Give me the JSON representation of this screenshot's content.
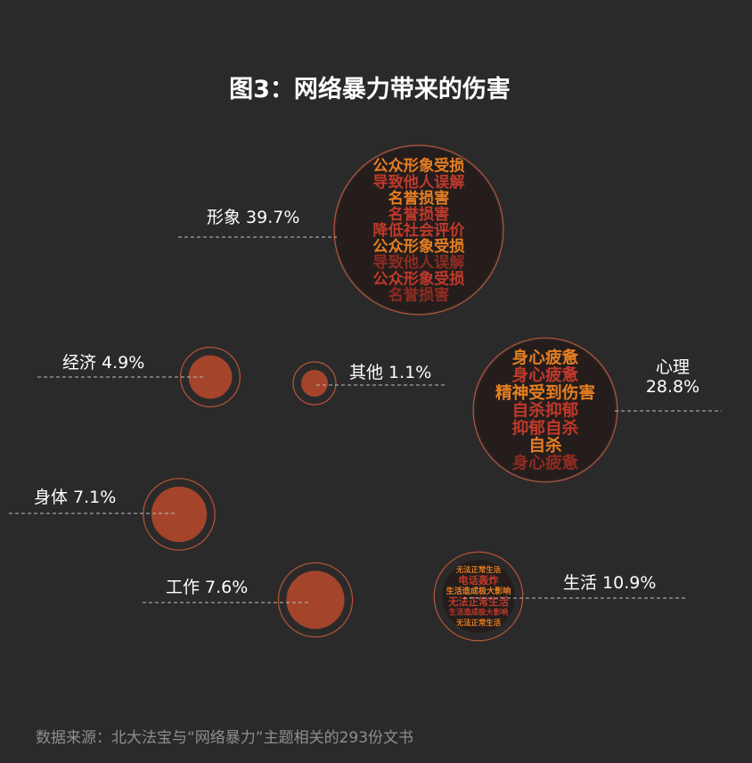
{
  "title": "图3：网络暴力带来的伤害",
  "source": "数据来源：北大法宝与“网络暴力”主题相关的293份文书",
  "colors": {
    "background": "#2b2a2a",
    "bubble_fill": "#a4452b",
    "bubble_ring": "#b8543a",
    "cloud_base": "#241d1b",
    "word_red": "#c0392b",
    "word_orange": "#e67e22",
    "word_dark_red": "#8e2b22",
    "label": "#ffffff",
    "source_text": "#8f8e8e"
  },
  "chart_data": {
    "type": "bubble",
    "title": "图3：网络暴力带来的伤害",
    "unit": "%",
    "categories": [
      "形象",
      "经济",
      "其他",
      "心理",
      "身体",
      "工作",
      "生活"
    ],
    "values": [
      39.7,
      4.9,
      1.1,
      28.8,
      7.1,
      7.6,
      10.9
    ],
    "labels": [
      "形象 39.7%",
      "经济 4.9%",
      "其他 1.1%",
      "心理\n28.8%",
      "身体 7.1%",
      "工作 7.6%",
      "生活 10.9%"
    ],
    "word_clouds": {
      "形象": [
        "公众形象受损",
        "导致他人误解",
        "名誉损害",
        "名誉损害",
        "降低社会评价",
        "公众形象受损",
        "导致他人误解",
        "公众形象受损",
        "名誉损害"
      ],
      "心理": [
        "身心疲惫",
        "身心疲惫",
        "精神受到伤害",
        "自杀抑郁",
        "抑郁自杀",
        "自杀",
        "身心疲惫"
      ],
      "生活": [
        "无法正常生活",
        "电话轰炸",
        "生活造成极大影响",
        "无法正常生活",
        "生活造成极大影响",
        "无法正常生活"
      ]
    }
  }
}
